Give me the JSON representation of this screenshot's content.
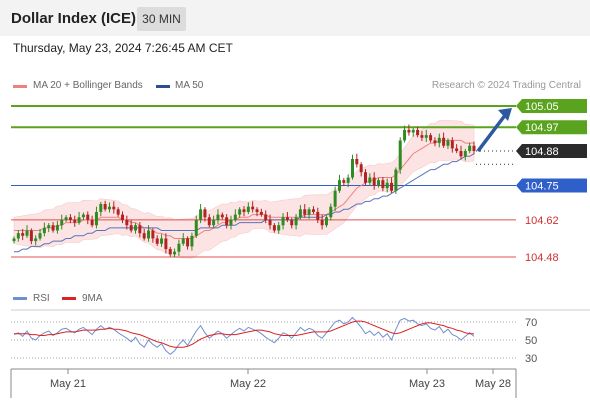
{
  "header": {
    "title": "Dollar Index (ICE)",
    "interval_label": "30 MIN"
  },
  "datetime": "Thursday, May 23, 2024 7:26:45 AM CET",
  "legend": {
    "bollinger_label": "MA 20 + Bollinger Bands",
    "ma50_label": "MA 50",
    "credit": "Research © 2024 Trading Central"
  },
  "rsi_legend": {
    "rsi_label": "RSI",
    "ma_label": "9MA"
  },
  "colors": {
    "green_level": "#5aa31e",
    "blue_level": "#2f5fc9",
    "red_level": "#f08080",
    "ma20": "#f08080",
    "ma50": "#5a72b8",
    "band_fill": "#fde2e2",
    "candle_up": "#2e8b22",
    "candle_down": "#b22222",
    "arrow": "#2b5aa0",
    "rsi": "#6e8fd0",
    "rsi_ma": "#dd2222"
  },
  "chart_data": [
    {
      "type": "candlestick",
      "title": "Dollar Index (ICE)",
      "interval": "30 MIN",
      "x_labels": [
        "May 21",
        "May 22",
        "May 23",
        "May 28"
      ],
      "ylim": [
        104.4,
        105.1
      ],
      "levels": [
        {
          "value": 105.05,
          "label": "105.05",
          "style": "resistance",
          "color": "#5aa31e"
        },
        {
          "value": 104.97,
          "label": "104.97",
          "style": "resistance",
          "color": "#5aa31e"
        },
        {
          "value": 104.88,
          "label": "104.88",
          "style": "last-price",
          "color": "#333333"
        },
        {
          "value": 104.75,
          "label": "104.75",
          "style": "pivot",
          "color": "#2f5fc9"
        },
        {
          "value": 104.62,
          "label": "104.62",
          "style": "support",
          "color": "#e05050"
        },
        {
          "value": 104.48,
          "label": "104.48",
          "style": "support",
          "color": "#e05050"
        }
      ],
      "close": [
        104.55,
        104.57,
        104.56,
        104.58,
        104.54,
        104.55,
        104.57,
        104.59,
        104.6,
        104.58,
        104.6,
        104.62,
        104.63,
        104.62,
        104.61,
        104.63,
        104.64,
        104.62,
        104.6,
        104.65,
        104.68,
        104.66,
        104.67,
        104.66,
        104.64,
        104.62,
        104.6,
        104.58,
        104.6,
        104.57,
        104.55,
        104.58,
        104.55,
        104.53,
        104.55,
        104.51,
        104.49,
        104.5,
        104.53,
        104.55,
        104.52,
        104.56,
        104.62,
        104.66,
        104.63,
        104.6,
        104.62,
        104.64,
        104.63,
        104.6,
        104.62,
        104.64,
        104.66,
        104.65,
        104.67,
        104.66,
        104.65,
        104.64,
        104.62,
        104.6,
        104.58,
        104.6,
        104.63,
        104.62,
        104.6,
        104.63,
        104.66,
        104.64,
        104.66,
        104.65,
        104.62,
        104.6,
        104.63,
        104.67,
        104.73,
        104.77,
        104.76,
        104.78,
        104.85,
        104.83,
        104.8,
        104.76,
        104.78,
        104.75,
        104.77,
        104.74,
        104.76,
        104.73,
        104.81,
        104.92,
        104.96,
        104.95,
        104.96,
        104.94,
        104.93,
        104.94,
        104.92,
        104.91,
        104.93,
        104.9,
        104.92,
        104.89,
        104.88,
        104.86,
        104.88,
        104.9,
        104.88
      ],
      "ma20": [
        104.58,
        104.58,
        104.58,
        104.58,
        104.58,
        104.58,
        104.58,
        104.59,
        104.59,
        104.59,
        104.6,
        104.6,
        104.61,
        104.61,
        104.61,
        104.61,
        104.62,
        104.62,
        104.62,
        104.62,
        104.63,
        104.63,
        104.63,
        104.63,
        104.63,
        104.62,
        104.62,
        104.61,
        104.61,
        104.6,
        104.59,
        104.59,
        104.58,
        104.57,
        104.57,
        104.56,
        104.56,
        104.55,
        104.55,
        104.55,
        104.55,
        104.55,
        104.56,
        104.57,
        104.58,
        104.58,
        104.59,
        104.6,
        104.61,
        104.61,
        104.62,
        104.62,
        104.63,
        104.63,
        104.63,
        104.64,
        104.64,
        104.64,
        104.64,
        104.63,
        104.63,
        104.63,
        104.63,
        104.63,
        104.63,
        104.63,
        104.63,
        104.64,
        104.64,
        104.64,
        104.64,
        104.64,
        104.64,
        104.65,
        104.66,
        104.67,
        104.68,
        104.7,
        104.72,
        104.74,
        104.75,
        104.76,
        104.77,
        104.77,
        104.78,
        104.78,
        104.78,
        104.78,
        104.79,
        104.81,
        104.83,
        104.85,
        104.87,
        104.88,
        104.89,
        104.9,
        104.91,
        104.91,
        104.92,
        104.92,
        104.92,
        104.92,
        104.92,
        104.92,
        104.91,
        104.91,
        104.91
      ],
      "ma50": [
        104.5,
        104.5,
        104.51,
        104.51,
        104.52,
        104.52,
        104.52,
        104.53,
        104.53,
        104.54,
        104.54,
        104.54,
        104.55,
        104.55,
        104.56,
        104.56,
        104.56,
        104.57,
        104.57,
        104.58,
        104.58,
        104.58,
        104.59,
        104.59,
        104.59,
        104.59,
        104.59,
        104.59,
        104.59,
        104.59,
        104.59,
        104.59,
        104.59,
        104.59,
        104.58,
        104.58,
        104.58,
        104.58,
        104.58,
        104.58,
        104.58,
        104.58,
        104.58,
        104.59,
        104.59,
        104.59,
        104.59,
        104.59,
        104.6,
        104.6,
        104.6,
        104.6,
        104.61,
        104.61,
        104.61,
        104.61,
        104.61,
        104.61,
        104.62,
        104.62,
        104.62,
        104.62,
        104.62,
        104.62,
        104.62,
        104.62,
        104.63,
        104.63,
        104.63,
        104.63,
        104.63,
        104.63,
        104.64,
        104.64,
        104.65,
        104.65,
        104.66,
        104.66,
        104.67,
        104.68,
        104.68,
        104.69,
        104.69,
        104.7,
        104.7,
        104.71,
        104.71,
        104.72,
        104.73,
        104.74,
        104.75,
        104.76,
        104.77,
        104.78,
        104.79,
        104.8,
        104.81,
        104.81,
        104.82,
        104.83,
        104.83,
        104.84,
        104.84,
        104.85,
        104.86,
        104.86,
        104.87
      ],
      "forecast": {
        "from": 104.88,
        "to": 105.05
      }
    },
    {
      "type": "line",
      "title": "RSI",
      "yticks": [
        30,
        50,
        70
      ],
      "ylim": [
        20,
        80
      ],
      "series": [
        {
          "name": "RSI",
          "values": [
            56,
            58,
            54,
            60,
            52,
            50,
            55,
            58,
            60,
            55,
            58,
            62,
            63,
            60,
            58,
            62,
            64,
            60,
            56,
            62,
            66,
            62,
            64,
            62,
            58,
            55,
            52,
            48,
            53,
            46,
            42,
            50,
            45,
            42,
            46,
            38,
            34,
            38,
            45,
            50,
            44,
            52,
            60,
            66,
            58,
            52,
            56,
            60,
            57,
            52,
            56,
            60,
            63,
            60,
            64,
            62,
            60,
            57,
            53,
            50,
            47,
            52,
            58,
            56,
            52,
            58,
            64,
            60,
            63,
            61,
            55,
            52,
            58,
            64,
            70,
            72,
            68,
            70,
            75,
            70,
            64,
            57,
            60,
            55,
            59,
            53,
            57,
            50,
            62,
            72,
            74,
            71,
            72,
            68,
            66,
            68,
            63,
            61,
            65,
            58,
            62,
            56,
            54,
            50,
            54,
            58,
            54
          ]
        },
        {
          "name": "9MA",
          "values": [
            57,
            57,
            57,
            57,
            56,
            56,
            55,
            55,
            56,
            56,
            57,
            58,
            59,
            59,
            59,
            60,
            61,
            61,
            61,
            61,
            62,
            62,
            63,
            62,
            62,
            61,
            60,
            58,
            57,
            56,
            54,
            52,
            50,
            48,
            47,
            45,
            43,
            42,
            42,
            42,
            43,
            45,
            48,
            51,
            53,
            55,
            56,
            57,
            57,
            56,
            56,
            56,
            57,
            58,
            59,
            60,
            61,
            61,
            60,
            59,
            57,
            56,
            55,
            55,
            55,
            55,
            56,
            57,
            58,
            59,
            59,
            59,
            59,
            60,
            62,
            64,
            66,
            68,
            70,
            71,
            71,
            70,
            68,
            66,
            64,
            62,
            60,
            58,
            57,
            58,
            60,
            62,
            64,
            66,
            68,
            69,
            69,
            68,
            67,
            66,
            64,
            63,
            61,
            60,
            58,
            57,
            57
          ]
        }
      ]
    }
  ]
}
